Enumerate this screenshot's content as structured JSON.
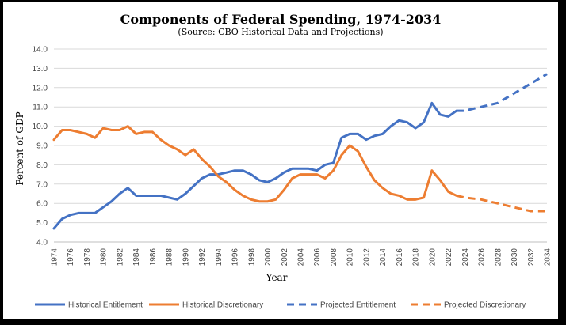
{
  "chart_data": {
    "type": "line",
    "title": "Components of Federal Spending, 1974-2034",
    "subtitle": "(Source: CBO Historical Data and Projections)",
    "xlabel": "Year",
    "ylabel": "Percent of GDP",
    "xlim": [
      1974,
      2034
    ],
    "ylim": [
      4.0,
      14.0
    ],
    "x_ticks": [
      "1974",
      "1976",
      "1978",
      "1980",
      "1982",
      "1984",
      "1986",
      "1988",
      "1990",
      "1992",
      "1994",
      "1996",
      "1998",
      "2000",
      "2002",
      "2004",
      "2006",
      "2008",
      "2010",
      "2012",
      "2014",
      "2016",
      "2018",
      "2020",
      "2022",
      "2024",
      "2026",
      "2028",
      "2030",
      "2032",
      "2034"
    ],
    "y_ticks": [
      "4.0",
      "5.0",
      "6.0",
      "7.0",
      "8.0",
      "9.0",
      "10.0",
      "11.0",
      "12.0",
      "13.0",
      "14.0"
    ],
    "grid": true,
    "legend_position": "bottom",
    "series": [
      {
        "name": "Historical Entitlement",
        "color": "#4472c4",
        "dash": "solid",
        "x": [
          1974,
          1975,
          1976,
          1977,
          1978,
          1979,
          1980,
          1981,
          1982,
          1983,
          1984,
          1985,
          1986,
          1987,
          1988,
          1989,
          1990,
          1991,
          1992,
          1993,
          1994,
          1995,
          1996,
          1997,
          1998,
          1999,
          2000,
          2001,
          2002,
          2003,
          2004,
          2005,
          2006,
          2007,
          2008,
          2009,
          2010,
          2011,
          2012,
          2013,
          2014,
          2015,
          2016,
          2017,
          2018,
          2019,
          2020,
          2021,
          2022,
          2023
        ],
        "values": [
          4.7,
          5.2,
          5.4,
          5.5,
          5.5,
          5.5,
          5.8,
          6.1,
          6.5,
          6.8,
          6.4,
          6.4,
          6.4,
          6.4,
          6.3,
          6.2,
          6.5,
          6.9,
          7.3,
          7.5,
          7.5,
          7.6,
          7.7,
          7.7,
          7.5,
          7.2,
          7.1,
          7.3,
          7.6,
          7.8,
          7.8,
          7.8,
          7.7,
          8.0,
          8.1,
          9.4,
          9.6,
          9.6,
          9.3,
          9.5,
          9.6,
          10.0,
          10.3,
          10.2,
          9.9,
          10.2,
          11.2,
          10.6,
          10.5,
          10.8
        ]
      },
      {
        "name": "Historical Discretionary",
        "color": "#ed7d31",
        "dash": "solid",
        "x": [
          1974,
          1975,
          1976,
          1977,
          1978,
          1979,
          1980,
          1981,
          1982,
          1983,
          1984,
          1985,
          1986,
          1987,
          1988,
          1989,
          1990,
          1991,
          1992,
          1993,
          1994,
          1995,
          1996,
          1997,
          1998,
          1999,
          2000,
          2001,
          2002,
          2003,
          2004,
          2005,
          2006,
          2007,
          2008,
          2009,
          2010,
          2011,
          2012,
          2013,
          2014,
          2015,
          2016,
          2017,
          2018,
          2019,
          2020,
          2021,
          2022,
          2023
        ],
        "values": [
          9.3,
          9.8,
          9.8,
          9.7,
          9.6,
          9.4,
          9.9,
          9.8,
          9.8,
          10.0,
          9.6,
          9.7,
          9.7,
          9.3,
          9.0,
          8.8,
          8.5,
          8.8,
          8.3,
          7.9,
          7.4,
          7.1,
          6.7,
          6.4,
          6.2,
          6.1,
          6.1,
          6.2,
          6.7,
          7.3,
          7.5,
          7.5,
          7.5,
          7.3,
          7.7,
          8.5,
          9.0,
          8.7,
          7.9,
          7.2,
          6.8,
          6.5,
          6.4,
          6.2,
          6.2,
          6.3,
          7.7,
          7.2,
          6.6,
          6.4
        ]
      },
      {
        "name": "Projected Entitlement",
        "color": "#4472c4",
        "dash": "dashed",
        "x": [
          2023,
          2024,
          2026,
          2028,
          2030,
          2032,
          2034
        ],
        "values": [
          10.8,
          10.8,
          11.0,
          11.2,
          11.7,
          12.2,
          12.7
        ]
      },
      {
        "name": "Projected Discretionary",
        "color": "#ed7d31",
        "dash": "dashed",
        "x": [
          2023,
          2024,
          2026,
          2028,
          2030,
          2032,
          2034
        ],
        "values": [
          6.4,
          6.3,
          6.2,
          6.0,
          5.8,
          5.6,
          5.6
        ]
      }
    ]
  }
}
